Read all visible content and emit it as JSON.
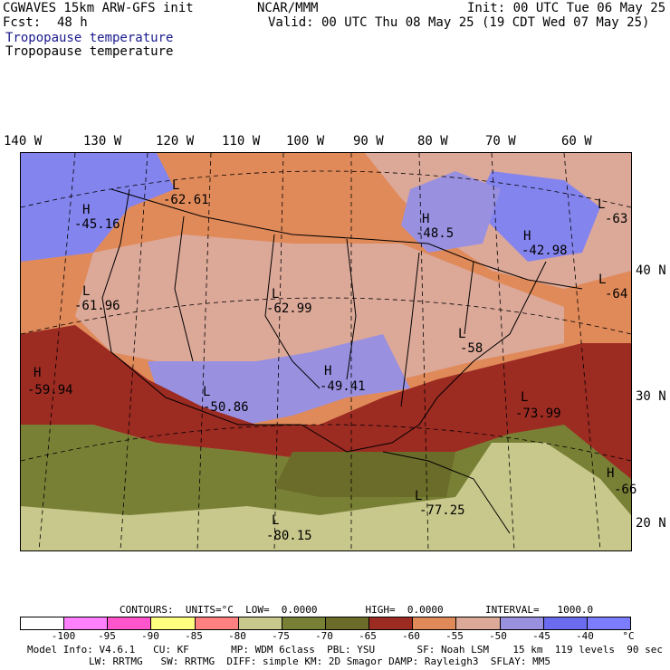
{
  "header": {
    "model_line": "CGWAVES 15km ARW-GFS init",
    "fcst_label": "Fcst:",
    "fcst_value": "48 h",
    "center": "NCAR/MMM",
    "init": "Init: 00 UTC Tue 06 May 25",
    "valid": "Valid: 00 UTC Thu 08 May 25 (19 CDT Wed 07 May 25)",
    "field_title_1": "Tropopause temperature",
    "field_title_2": "Tropopause temperature"
  },
  "longitudes": [
    "140 W",
    "130 W",
    "120 W",
    "110 W",
    "100 W",
    "90 W",
    "80 W",
    "70 W",
    "60 W"
  ],
  "latitudes": [
    "40 N",
    "30 N",
    "20 N"
  ],
  "highs_lows": [
    {
      "type": "H",
      "value": "-45.16"
    },
    {
      "type": "L",
      "value": "-62.61"
    },
    {
      "type": "H",
      "value": "-48.5"
    },
    {
      "type": "H",
      "value": "-42.98"
    },
    {
      "type": "L",
      "value": "-63"
    },
    {
      "type": "L",
      "value": "-61.96"
    },
    {
      "type": "L",
      "value": "-62.99"
    },
    {
      "type": "L",
      "value": "-64"
    },
    {
      "type": "L",
      "value": "-58"
    },
    {
      "type": "H",
      "value": "-59.94"
    },
    {
      "type": "H",
      "value": "-49.41"
    },
    {
      "type": "L",
      "value": "-50.86"
    },
    {
      "type": "L",
      "value": "-73.99"
    },
    {
      "type": "H",
      "value": "-66"
    },
    {
      "type": "L",
      "value": "-77.25"
    },
    {
      "type": "L",
      "value": "-80.15"
    },
    {
      "type": "L",
      "value": ""
    }
  ],
  "contours": {
    "text": "CONTOURS:  UNITS=°C  LOW=  0.0000        HIGH=  0.0000       INTERVAL=   1000.0"
  },
  "colorbar": {
    "colors": [
      "#ffffff",
      "#ff80ff",
      "#ff55cc",
      "#ffff80",
      "#ff8080",
      "#c8c88c",
      "#788036",
      "#6b6b2a",
      "#9c2b22",
      "#e08a5a",
      "#dca898",
      "#9a90e0",
      "#6b6bef",
      "#7c7cff"
    ],
    "ticks": [
      "-100",
      "-95",
      "-90",
      "-85",
      "-80",
      "-75",
      "-70",
      "-65",
      "-60",
      "-55",
      "-50",
      "-45",
      "-40"
    ],
    "unit": "°C"
  },
  "footer": {
    "line1": "Model Info: V4.6.1   CU: KF       MP: WDM 6class  PBL: YSU       SF: Noah LSM    15 km  119 levels  90 sec",
    "line2": "LW: RRTMG   SW: RRTMG  DIFF: simple KM: 2D Smagor DAMP: Rayleigh3  SFLAY: MM5"
  }
}
